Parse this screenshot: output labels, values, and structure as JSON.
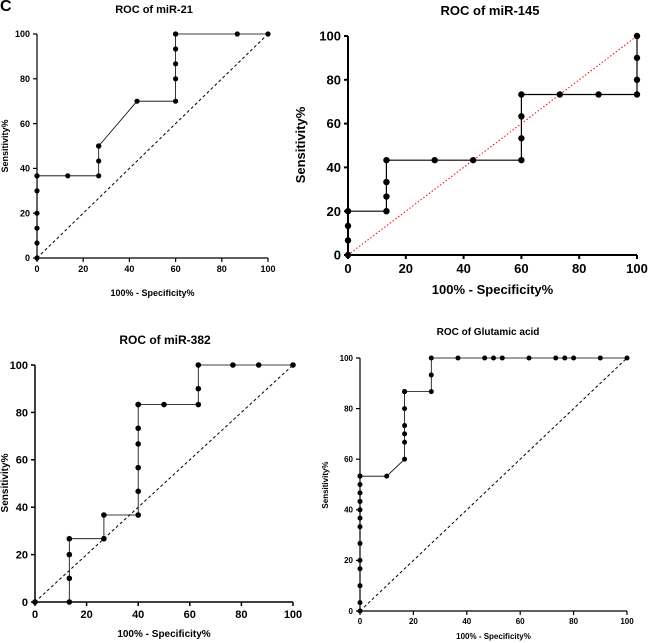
{
  "figure": {
    "panel_letter": "C"
  },
  "chart_data": [
    {
      "type": "line",
      "title": "ROC of miR-21",
      "xlabel": "100% - Specificity%",
      "ylabel": "Sensitivity%",
      "xlim": [
        0,
        100
      ],
      "ylim": [
        0,
        100
      ],
      "xticks": [
        0,
        20,
        40,
        60,
        80,
        100
      ],
      "yticks": [
        0,
        20,
        40,
        60,
        80,
        100
      ],
      "grid": false,
      "reference_line": {
        "color": "#000000",
        "style": "dashed"
      },
      "series": [
        {
          "x": [
            0,
            0,
            0,
            0,
            0,
            0,
            0,
            13.3,
            26.7,
            26.7,
            26.7,
            26.7,
            43.3,
            60,
            60,
            60,
            60,
            60,
            60,
            86.7,
            100
          ],
          "y": [
            0,
            6.7,
            13.3,
            20,
            30,
            36.7,
            36.7,
            36.7,
            36.7,
            43.3,
            50,
            50,
            70,
            70,
            80,
            86.7,
            93.3,
            100,
            100,
            100,
            100
          ]
        }
      ]
    },
    {
      "type": "line",
      "title": "ROC of miR-145",
      "xlabel": "100% - Specificity%",
      "ylabel": "Sensitivity%",
      "xlim": [
        0,
        100
      ],
      "ylim": [
        0,
        100
      ],
      "xticks": [
        0,
        20,
        40,
        60,
        80,
        100
      ],
      "yticks": [
        0,
        20,
        40,
        60,
        80,
        100
      ],
      "grid": false,
      "reference_line": {
        "color": "#ff0000",
        "style": "dotted"
      },
      "series": [
        {
          "x": [
            0,
            0,
            0,
            0,
            13.3,
            13.3,
            13.3,
            13.3,
            30,
            43.3,
            60,
            60,
            60,
            60,
            73.3,
            86.7,
            100,
            100,
            100,
            100
          ],
          "y": [
            0,
            6.7,
            13.3,
            20,
            20,
            26.7,
            33.3,
            43.3,
            43.3,
            43.3,
            43.3,
            53.3,
            63.3,
            73.3,
            73.3,
            73.3,
            73.3,
            80,
            90,
            100
          ]
        }
      ]
    },
    {
      "type": "line",
      "title": "ROC of miR-382",
      "xlabel": "100% - Specificity%",
      "ylabel": "Sensitivity%",
      "xlim": [
        0,
        100
      ],
      "ylim": [
        0,
        100
      ],
      "xticks": [
        0,
        20,
        40,
        60,
        80,
        100
      ],
      "yticks": [
        0,
        20,
        40,
        60,
        80,
        100
      ],
      "grid": false,
      "reference_line": {
        "color": "#000000",
        "style": "dashed"
      },
      "series": [
        {
          "x": [
            0,
            13.3,
            13.3,
            13.3,
            13.3,
            26.7,
            26.7,
            40,
            40,
            40,
            40,
            40,
            40,
            40,
            50,
            63.3,
            63.3,
            63.3,
            76.7,
            86.7,
            100
          ],
          "y": [
            0,
            0,
            10,
            20,
            26.7,
            26.7,
            36.7,
            36.7,
            46.7,
            56.7,
            66.7,
            73.3,
            83.3,
            83.3,
            83.3,
            83.3,
            90,
            100,
            100,
            100,
            100
          ]
        }
      ]
    },
    {
      "type": "line",
      "title": "ROC of Glutamic acid",
      "xlabel": "100% - Specificity%",
      "ylabel": "Sensitivity%",
      "xlim": [
        0,
        100
      ],
      "ylim": [
        0,
        100
      ],
      "xticks": [
        0,
        20,
        40,
        60,
        80,
        100
      ],
      "yticks": [
        0,
        20,
        40,
        60,
        80,
        100
      ],
      "grid": false,
      "reference_line": {
        "color": "#000000",
        "style": "dashed"
      },
      "series": [
        {
          "x": [
            0,
            0,
            0,
            0,
            0,
            0,
            0,
            0,
            0,
            0,
            0,
            0,
            0,
            0,
            0,
            10,
            16.7,
            16.7,
            16.7,
            16.7,
            16.7,
            16.7,
            16.7,
            16.7,
            26.7,
            26.7,
            26.7,
            36.7,
            46.7,
            50,
            53.3,
            63.3,
            73.3,
            76.7,
            80,
            90,
            100
          ],
          "y": [
            0,
            3.3,
            10,
            16.7,
            20,
            26.7,
            33.3,
            36.7,
            40,
            43.3,
            46.7,
            50,
            53.3,
            53.3,
            53.3,
            53.3,
            60,
            66.7,
            70,
            73.3,
            80,
            86.7,
            86.7,
            86.7,
            86.7,
            93.3,
            100,
            100,
            100,
            100,
            100,
            100,
            100,
            100,
            100,
            100,
            100
          ]
        }
      ]
    }
  ]
}
